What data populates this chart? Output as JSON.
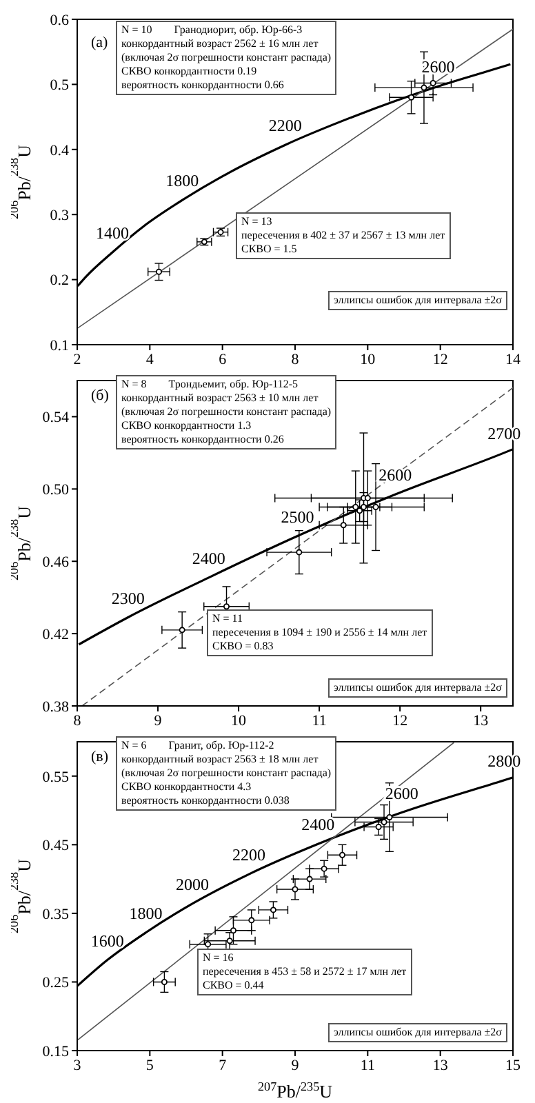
{
  "chart_data": [
    {
      "type": "line",
      "ylabel": "$^{206}$Pb/$^{238}$U",
      "xlim": [
        2,
        14
      ],
      "ylim": [
        0.1,
        0.6
      ],
      "xticks": [
        2,
        4,
        6,
        8,
        10,
        12,
        14
      ],
      "yticks": [
        0.1,
        0.2,
        0.3,
        0.4,
        0.5,
        0.6
      ],
      "annotations": [
        "(а)",
        "N = 10        Гранодиорит, обр. Юр-66-3\nконкордантный возраст 2562 ± 16 млн лет\n(включая 2σ погрешности констант распада)\nСКВО конкордантности 0.19\nвероятность конкордантности 0.66",
        "N = 13\nпересечения в 402 ± 37 и 2567 ± 13 млн лет\nСКВО = 1.5",
        "эллипсы ошибок для интервала ±2σ",
        {
          "text": "1400",
          "x": 2.97,
          "y": 0.242
        },
        {
          "text": "1800",
          "x": 4.89,
          "y": 0.322
        },
        {
          "text": "2200",
          "x": 7.73,
          "y": 0.407
        },
        {
          "text": "2600",
          "x": 11.94,
          "y": 0.497
        }
      ],
      "series": [
        {
          "color": "#000000",
          "x": [
            2.01,
            2.25,
            2.97,
            3.83,
            4.89,
            6.17,
            7.73,
            9.63,
            11.94,
            13.29,
            13.93
          ],
          "values": [
            0.19,
            0.205,
            0.242,
            0.282,
            0.322,
            0.364,
            0.407,
            0.451,
            0.497,
            0.52,
            0.531
          ]
        },
        {
          "color": "#555555",
          "x": [
            2,
            14
          ],
          "values": [
            0.125,
            0.585
          ]
        },
        {
          "type": "scatter",
          "marker": "circle",
          "color": "#000000",
          "x": [
            4.25,
            5.5,
            5.95,
            11.55,
            11.2,
            11.8
          ],
          "values": [
            0.212,
            0.258,
            0.273,
            0.495,
            0.48,
            0.502
          ],
          "xerrors": [
            0.3,
            0.2,
            0.2,
            1.35,
            0.6,
            0.5
          ],
          "errors": [
            0.013,
            0.005,
            0.006,
            0.055,
            0.025,
            0.018
          ]
        }
      ]
    },
    {
      "type": "line",
      "ylabel": "$^{206}$Pb/$^{238}$U",
      "xlim": [
        8,
        13.4
      ],
      "ylim": [
        0.38,
        0.56
      ],
      "xticks": [
        8,
        9,
        10,
        11,
        12,
        13
      ],
      "yticks": [
        0.38,
        0.42,
        0.46,
        {
          "value": 0.5,
          "label": "0.50"
        },
        0.54
      ],
      "annotations": [
        "(б)",
        "N = 8        Трондьемит, обр. Юр-112-5\nконкордантный возраст 2563 ± 10 млн лет\n(включая 2σ погрешности констант распада)\nСКВО конкордантности 1.3\nвероятность конкордантности 0.26",
        "N = 11\nпересечения в 1094 ± 190 и 2556 ± 14 млн лет\nСКВО = 0.83",
        "эллипсы ошибок для интервала ±2σ",
        {
          "text": "2300",
          "x": 8.63,
          "y": 0.429
        },
        {
          "text": "2400",
          "x": 9.63,
          "y": 0.451
        },
        {
          "text": "2500",
          "x": 10.73,
          "y": 0.474
        },
        {
          "text": "2600",
          "x": 11.94,
          "y": 0.497
        },
        {
          "text": "2700",
          "x": 13.29,
          "y": 0.52
        }
      ],
      "series": [
        {
          "color": "#000000",
          "x": [
            8.02,
            8.63,
            9.63,
            10.73,
            11.94,
            13.29,
            13.4
          ],
          "values": [
            0.414,
            0.429,
            0.451,
            0.474,
            0.497,
            0.52,
            0.522
          ]
        },
        {
          "color": "#555555",
          "line_style": "dashed",
          "x": [
            8.06,
            13.4
          ],
          "values": [
            0.38,
            0.556
          ]
        },
        {
          "type": "scatter",
          "marker": "circle",
          "color": "#000000",
          "x": [
            9.3,
            9.85,
            10.75,
            11.55,
            11.7,
            11.45,
            11.55,
            11.3,
            11.6,
            11.5
          ],
          "values": [
            0.422,
            0.435,
            0.465,
            0.495,
            0.49,
            0.49,
            0.49,
            0.48,
            0.495,
            0.488
          ],
          "xerrors": [
            0.25,
            0.28,
            0.4,
            1.1,
            0.6,
            0.45,
            0.2,
            0.3,
            0.7,
            0.15
          ],
          "errors": [
            0.01,
            0.011,
            0.012,
            0.036,
            0.024,
            0.02,
            0.008,
            0.01,
            0.015,
            0.006
          ]
        }
      ]
    },
    {
      "type": "line",
      "xlabel": "$^{207}$Pb/$^{235}$U",
      "ylabel": "$^{206}$Pb/$^{238}$U",
      "xlim": [
        3,
        15
      ],
      "ylim": [
        0.15,
        0.6
      ],
      "xticks": [
        3,
        5,
        7,
        9,
        11,
        13,
        15
      ],
      "yticks": [
        0.15,
        0.25,
        0.35,
        0.45,
        0.55
      ],
      "annotations": [
        "(в)",
        "N = 6        Гранит, обр. Юр-112-2\nконкордантный возраст 2563 ± 18 млн лет\n(включая 2σ погрешности констант распада)\nСКВО конкордантности 4.3\nвероятность конкордантности 0.038",
        "N = 16\nпересечения в 453 ± 58 и 2572 ± 17 млн лет\nСКВО = 0.44",
        "эллипсы ошибок для интервала ±2σ",
        {
          "text": "1600",
          "x": 3.83,
          "y": 0.282
        },
        {
          "text": "1800",
          "x": 4.89,
          "y": 0.322
        },
        {
          "text": "2000",
          "x": 6.17,
          "y": 0.364
        },
        {
          "text": "2200",
          "x": 7.73,
          "y": 0.407
        },
        {
          "text": "2400",
          "x": 9.63,
          "y": 0.451
        },
        {
          "text": "2600",
          "x": 11.94,
          "y": 0.497
        },
        {
          "text": "2800",
          "x": 14.76,
          "y": 0.544
        }
      ],
      "series": [
        {
          "color": "#000000",
          "x": [
            3,
            3.83,
            4.89,
            6.17,
            7.73,
            9.63,
            11.94,
            14.76,
            15
          ],
          "values": [
            0.244,
            0.282,
            0.322,
            0.364,
            0.407,
            0.451,
            0.497,
            0.544,
            0.548
          ]
        },
        {
          "color": "#555555",
          "x": [
            3,
            13.4
          ],
          "values": [
            0.165,
            0.6
          ]
        },
        {
          "type": "scatter",
          "marker": "circle",
          "color": "#000000",
          "x": [
            5.4,
            6.6,
            7.2,
            7.3,
            7.8,
            8.4,
            9,
            9.4,
            9.8,
            10.3,
            11.6,
            11.45,
            11.3
          ],
          "values": [
            0.25,
            0.305,
            0.31,
            0.325,
            0.34,
            0.355,
            0.385,
            0.4,
            0.415,
            0.435,
            0.49,
            0.483,
            0.476
          ],
          "xerrors": [
            0.3,
            0.5,
            0.7,
            0.5,
            0.5,
            0.4,
            0.5,
            0.45,
            0.4,
            0.4,
            1.6,
            0.8,
            0.4
          ],
          "errors": [
            0.015,
            0.015,
            0.012,
            0.02,
            0.015,
            0.012,
            0.015,
            0.015,
            0.012,
            0.015,
            0.05,
            0.025,
            0.012
          ]
        }
      ]
    }
  ]
}
